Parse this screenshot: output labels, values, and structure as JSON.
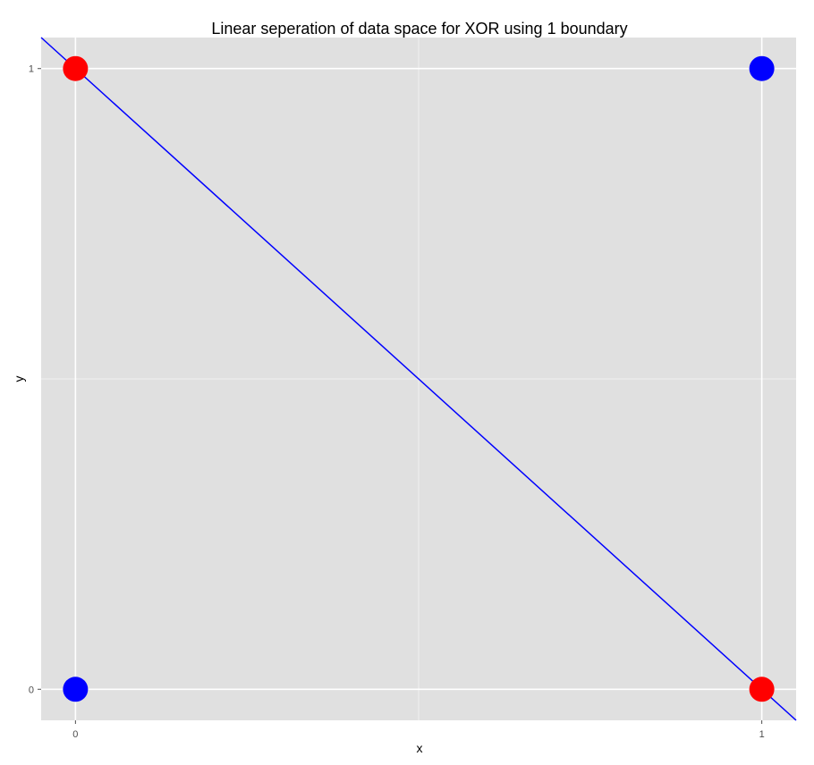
{
  "chart_data": {
    "type": "scatter",
    "title": "Linear seperation of data space for XOR using 1 boundary",
    "xlabel": "x",
    "ylabel": "y",
    "xlim": [
      -0.05,
      1.05
    ],
    "ylim": [
      -0.05,
      1.05
    ],
    "x_ticks": [
      "0",
      "1"
    ],
    "y_ticks": [
      "0",
      "1"
    ],
    "grid": true,
    "colors": {
      "panel": "#e0e0e0",
      "grid_major": "#ffffff",
      "grid_minor": "#f0f0f0",
      "red": "#ff0000",
      "blue": "#0000ff",
      "boundary": "#0000ff"
    },
    "points": [
      {
        "x": 0,
        "y": 1,
        "color": "red"
      },
      {
        "x": 1,
        "y": 1,
        "color": "blue"
      },
      {
        "x": 0,
        "y": 0,
        "color": "blue"
      },
      {
        "x": 1,
        "y": 0,
        "color": "red"
      }
    ],
    "boundary": {
      "slope": -1,
      "intercept": 1
    }
  }
}
